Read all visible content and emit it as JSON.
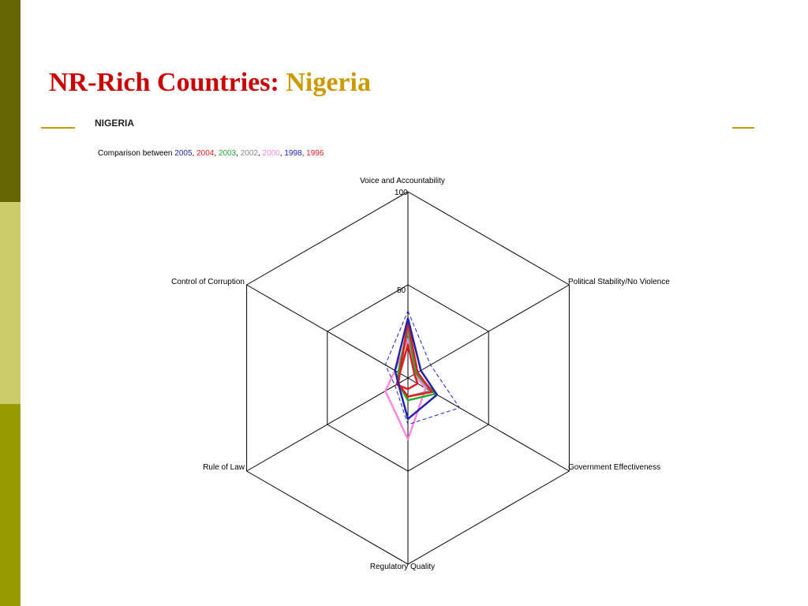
{
  "slide": {
    "title_main": "NR-Rich Countries:",
    "title_accent": "Nigeria"
  },
  "chart_data": {
    "type": "radar",
    "title": "NIGERIA",
    "subtitle_prefix": "Comparison between",
    "axes": [
      "Voice and Accountability",
      "Political Stability/No Violence",
      "Government Effectiveness",
      "Regulatory Quality",
      "Rule of Law",
      "Control of Corruption"
    ],
    "range": [
      0,
      100
    ],
    "ticks": [
      "100",
      "50"
    ],
    "series": [
      {
        "name": "2005",
        "color": "#2222aa",
        "style": "solid",
        "values": [
          32,
          8,
          18,
          22,
          6,
          8
        ]
      },
      {
        "name": "2004",
        "color": "#e02020",
        "style": "solid",
        "values": [
          30,
          6,
          15,
          10,
          6,
          5
        ]
      },
      {
        "name": "2003",
        "color": "#22aa33",
        "style": "solid",
        "values": [
          28,
          5,
          17,
          12,
          6,
          6
        ]
      },
      {
        "name": "2002",
        "color": "#888888",
        "style": "solid",
        "values": [
          25,
          5,
          14,
          10,
          6,
          6
        ]
      },
      {
        "name": "2000",
        "color": "#ff88dd",
        "style": "solid",
        "values": [
          21,
          4,
          11,
          33,
          14,
          8
        ]
      },
      {
        "name": "1998",
        "color": "#2222cc",
        "style": "dashed",
        "values": [
          36,
          14,
          32,
          25,
          8,
          14
        ]
      },
      {
        "name": "1996",
        "color": "#e02020",
        "style": "solid",
        "values": [
          18,
          4,
          6,
          6,
          7,
          5
        ]
      }
    ]
  }
}
